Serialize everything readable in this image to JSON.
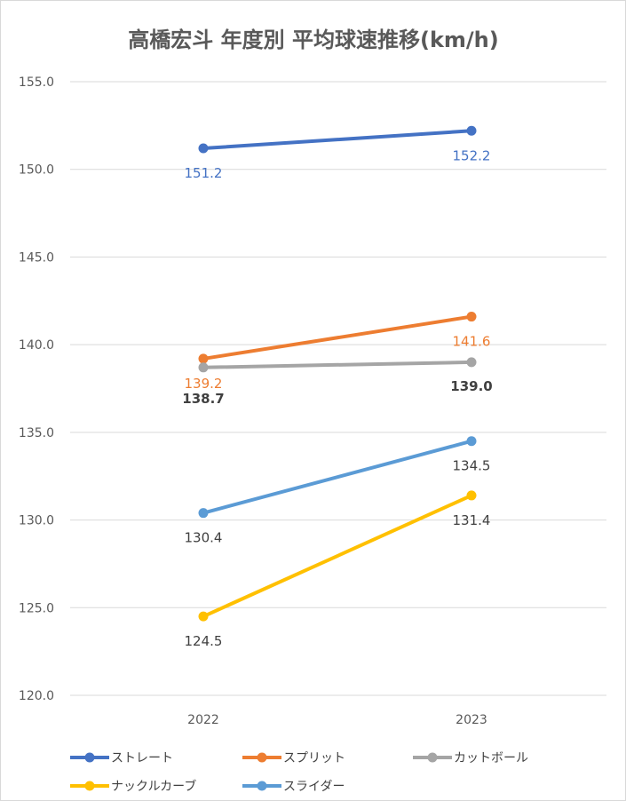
{
  "chart_data": {
    "type": "line",
    "title": "高橋宏斗 年度別 平均球速推移(km/h)",
    "categories": [
      "2022",
      "2023"
    ],
    "ylim": [
      120,
      155
    ],
    "yticks": [
      "120.0",
      "125.0",
      "130.0",
      "135.0",
      "140.0",
      "145.0",
      "150.0",
      "155.0"
    ],
    "grid": true,
    "legend_position": "bottom",
    "series": [
      {
        "name": "ストレート",
        "color": "#4472c4",
        "values": [
          151.2,
          152.2
        ],
        "labels": [
          "151.2",
          "152.2"
        ]
      },
      {
        "name": "スプリット",
        "color": "#ed7d31",
        "values": [
          139.2,
          141.6
        ],
        "labels": [
          "139.2",
          "141.6"
        ]
      },
      {
        "name": "カットボール",
        "color": "#a5a5a5",
        "values": [
          138.7,
          139.0
        ],
        "labels": [
          "138.7",
          "139.0"
        ]
      },
      {
        "name": "ナックルカーブ",
        "color": "#ffc000",
        "values": [
          124.5,
          131.4
        ],
        "labels": [
          "124.5",
          "131.4"
        ]
      },
      {
        "name": "スライダー",
        "color": "#5b9bd5",
        "values": [
          130.4,
          134.5
        ],
        "labels": [
          "130.4",
          "134.5"
        ]
      }
    ]
  }
}
